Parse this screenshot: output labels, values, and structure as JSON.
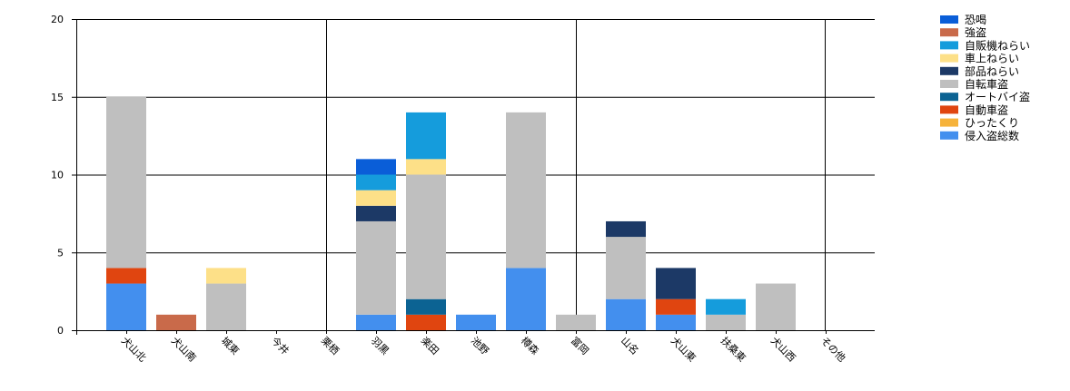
{
  "chart_data": {
    "type": "bar",
    "stacked": true,
    "categories": [
      "犬山北",
      "犬山南",
      "城東",
      "今井",
      "栗栖",
      "羽黒",
      "楽田",
      "池野",
      "樽森",
      "富岡",
      "山名",
      "犬山東",
      "扶桑東",
      "犬山西",
      "その他"
    ],
    "ylim": [
      0,
      20
    ],
    "yticks": [
      0,
      5,
      10,
      15,
      20
    ],
    "grid": true,
    "legend_position": "top-right",
    "series": [
      {
        "name": "恐喝",
        "color": "#0a5ed8",
        "values": [
          0,
          0,
          0,
          0,
          0,
          1,
          0,
          0,
          0,
          0,
          0,
          0,
          0,
          0,
          0
        ]
      },
      {
        "name": "強盗",
        "color": "#c96a4a",
        "values": [
          0,
          1,
          0,
          0,
          0,
          0,
          0,
          0,
          0,
          0,
          0,
          0,
          0,
          0,
          0
        ]
      },
      {
        "name": "自販機ねらい",
        "color": "#159cdc",
        "values": [
          0,
          0,
          0,
          0,
          0,
          1,
          3,
          0,
          0,
          0,
          0,
          0,
          1,
          0,
          0
        ]
      },
      {
        "name": "車上ねらい",
        "color": "#fde088",
        "values": [
          0,
          0,
          1,
          0,
          0,
          1,
          1,
          0,
          0,
          0,
          0,
          0,
          0,
          0,
          0
        ]
      },
      {
        "name": "部品ねらい",
        "color": "#1c3966",
        "values": [
          0,
          0,
          0,
          0,
          0,
          1,
          0,
          0,
          0,
          0,
          1,
          2,
          0,
          0,
          0
        ]
      },
      {
        "name": "自転車盗",
        "color": "#bfbfbf",
        "values": [
          11,
          0,
          3,
          0,
          0,
          6,
          8,
          0,
          10,
          1,
          4,
          0,
          1,
          3,
          0
        ]
      },
      {
        "name": "オートバイ盗",
        "color": "#0c6393",
        "values": [
          0,
          0,
          0,
          0,
          0,
          0,
          1,
          0,
          0,
          0,
          0,
          0,
          0,
          0,
          0
        ]
      },
      {
        "name": "自動車盗",
        "color": "#e04510",
        "values": [
          1,
          0,
          0,
          0,
          0,
          0,
          1,
          0,
          0,
          0,
          0,
          1,
          0,
          0,
          0
        ]
      },
      {
        "name": "ひったくり",
        "color": "#f6b33b",
        "values": [
          0,
          0,
          0,
          0,
          0,
          0,
          0,
          0,
          0,
          0,
          0,
          0,
          0,
          0,
          0
        ]
      },
      {
        "name": "侵入盗総数",
        "color": "#438fee",
        "values": [
          3,
          0,
          0,
          0,
          0,
          1,
          0,
          1,
          4,
          0,
          2,
          1,
          0,
          0,
          0
        ]
      }
    ]
  }
}
